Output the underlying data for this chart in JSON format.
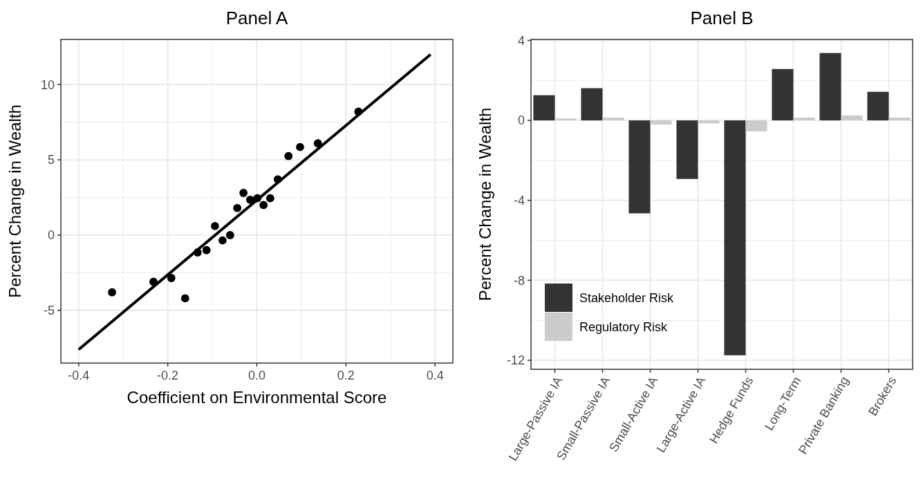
{
  "chart_data": [
    {
      "type": "scatter",
      "title": "Panel A",
      "xlabel": "Coefficient on Environmental Score",
      "ylabel": "Percent Change in Wealth",
      "xlim": [
        -0.44,
        0.44
      ],
      "ylim": [
        -8.5,
        13
      ],
      "xticks": [
        {
          "value": -0.4,
          "label": "-0.4"
        },
        {
          "value": -0.2,
          "label": "-0.2"
        },
        {
          "value": 0,
          "label": "0.0"
        },
        {
          "value": 0.2,
          "label": "0.2"
        },
        {
          "value": 0.4,
          "label": "0.4"
        }
      ],
      "yticks": [
        -5,
        0,
        5,
        10
      ],
      "grid": true,
      "legend": false,
      "marker": "circle",
      "series": [
        {
          "type": "scatter",
          "color": "#000000",
          "x": [
            -0.325,
            -0.232,
            -0.192,
            -0.161,
            -0.133,
            -0.113,
            -0.094,
            -0.077,
            -0.06,
            -0.044,
            -0.03,
            -0.015,
            0.001,
            0.015,
            0.03,
            0.047,
            0.071,
            0.097,
            0.137,
            0.228
          ],
          "values": [
            -3.8,
            -3.1,
            -2.85,
            -4.2,
            -1.15,
            -1.0,
            0.6,
            -0.35,
            0.0,
            1.8,
            2.8,
            2.35,
            2.45,
            2.0,
            2.45,
            3.7,
            5.25,
            5.85,
            6.1,
            8.2
          ]
        },
        {
          "type": "line",
          "color": "#000000",
          "marker": "none",
          "x": [
            -0.4,
            0.39
          ],
          "values": [
            -7.6,
            12.0
          ]
        }
      ]
    },
    {
      "type": "bar",
      "title": "Panel B",
      "ylabel": "Percent Change in Wealth",
      "categories": [
        "Large-Passive IA",
        "Small-Passive IA",
        "Small-Active IA",
        "Large-Active IA",
        "Hedge Funds",
        "Long-Term",
        "Private Banking",
        "Brokers"
      ],
      "ylim": [
        -12.45,
        4.05
      ],
      "yticks": [
        -12,
        -8,
        -4,
        0,
        4
      ],
      "grid": true,
      "legend": "bottom left",
      "series": [
        {
          "name": "Stakeholder Risk",
          "color": "#333333",
          "values": [
            1.26,
            1.61,
            -4.65,
            -2.93,
            -11.75,
            2.57,
            3.37,
            1.43
          ]
        },
        {
          "name": "Regulatory Risk",
          "color": "#cccccc",
          "values": [
            0.1,
            0.14,
            -0.21,
            -0.15,
            -0.55,
            0.14,
            0.25,
            0.14
          ]
        }
      ]
    }
  ]
}
